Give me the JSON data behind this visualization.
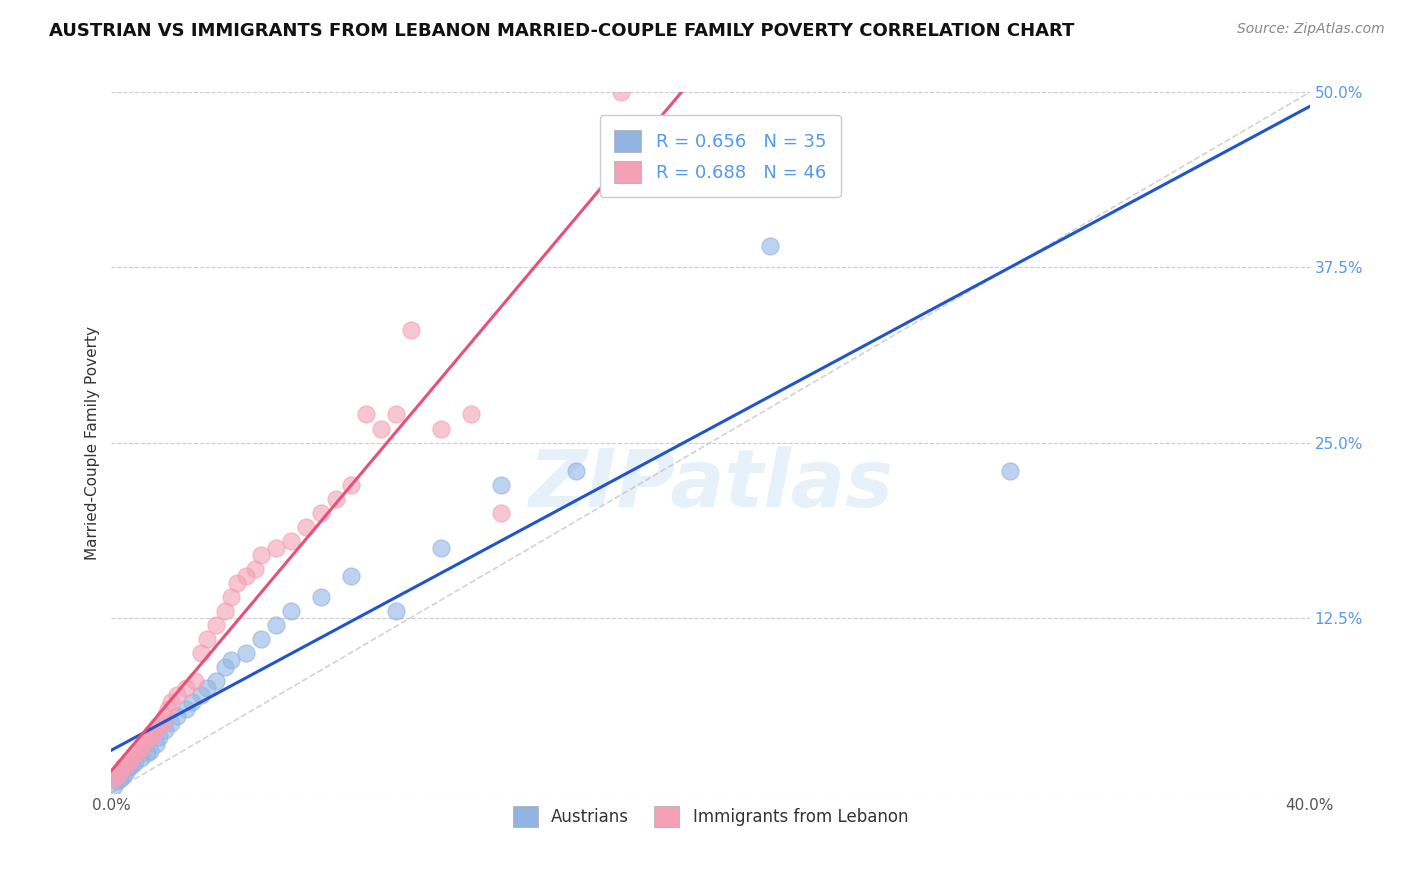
{
  "title": "AUSTRIAN VS IMMIGRANTS FROM LEBANON MARRIED-COUPLE FAMILY POVERTY CORRELATION CHART",
  "source": "Source: ZipAtlas.com",
  "ylabel": "Married-Couple Family Poverty",
  "xlim": [
    0.0,
    0.4
  ],
  "ylim": [
    0.0,
    0.5
  ],
  "xticks": [
    0.0,
    0.05,
    0.1,
    0.15,
    0.2,
    0.25,
    0.3,
    0.35,
    0.4
  ],
  "xticklabels": [
    "0.0%",
    "",
    "",
    "",
    "",
    "",
    "",
    "",
    "40.0%"
  ],
  "yticks": [
    0.0,
    0.125,
    0.25,
    0.375,
    0.5
  ],
  "yticklabels": [
    "",
    "12.5%",
    "25.0%",
    "37.5%",
    "50.0%"
  ],
  "grid_color": "#cccccc",
  "background_color": "#ffffff",
  "watermark": "ZIPatlas",
  "austrians_x": [
    0.001,
    0.002,
    0.003,
    0.004,
    0.005,
    0.006,
    0.007,
    0.008,
    0.01,
    0.012,
    0.013,
    0.015,
    0.016,
    0.018,
    0.02,
    0.022,
    0.025,
    0.027,
    0.03,
    0.032,
    0.035,
    0.038,
    0.04,
    0.045,
    0.05,
    0.055,
    0.06,
    0.07,
    0.08,
    0.095,
    0.11,
    0.13,
    0.155,
    0.22,
    0.3
  ],
  "austrians_y": [
    0.005,
    0.008,
    0.01,
    0.012,
    0.015,
    0.018,
    0.02,
    0.022,
    0.025,
    0.028,
    0.03,
    0.035,
    0.04,
    0.045,
    0.05,
    0.055,
    0.06,
    0.065,
    0.07,
    0.075,
    0.08,
    0.09,
    0.095,
    0.1,
    0.11,
    0.12,
    0.13,
    0.14,
    0.155,
    0.13,
    0.175,
    0.22,
    0.23,
    0.39,
    0.23
  ],
  "lebanon_x": [
    0.001,
    0.002,
    0.003,
    0.004,
    0.005,
    0.006,
    0.007,
    0.008,
    0.009,
    0.01,
    0.011,
    0.012,
    0.013,
    0.014,
    0.015,
    0.016,
    0.017,
    0.018,
    0.019,
    0.02,
    0.022,
    0.025,
    0.028,
    0.03,
    0.032,
    0.035,
    0.038,
    0.04,
    0.042,
    0.045,
    0.048,
    0.05,
    0.055,
    0.06,
    0.065,
    0.07,
    0.075,
    0.08,
    0.085,
    0.09,
    0.095,
    0.1,
    0.11,
    0.12,
    0.13,
    0.17
  ],
  "lebanon_y": [
    0.01,
    0.012,
    0.015,
    0.018,
    0.02,
    0.022,
    0.025,
    0.028,
    0.03,
    0.032,
    0.035,
    0.038,
    0.04,
    0.042,
    0.045,
    0.048,
    0.05,
    0.055,
    0.06,
    0.065,
    0.07,
    0.075,
    0.08,
    0.1,
    0.11,
    0.12,
    0.13,
    0.14,
    0.15,
    0.155,
    0.16,
    0.17,
    0.175,
    0.18,
    0.19,
    0.2,
    0.21,
    0.22,
    0.27,
    0.26,
    0.27,
    0.33,
    0.26,
    0.27,
    0.2,
    0.5
  ],
  "austrians_color": "#92b4e3",
  "lebanon_color": "#f4a0b5",
  "austrians_line_color": "#2255cc",
  "lebanon_line_color": "#e8507a",
  "diagonal_color": "#c0c0c0",
  "legend_austrians_R": "0.656",
  "legend_austrians_N": "35",
  "legend_lebanon_R": "0.688",
  "legend_lebanon_N": "46",
  "title_fontsize": 13,
  "label_fontsize": 11,
  "tick_fontsize": 11,
  "legend_fontsize": 13,
  "source_fontsize": 10
}
